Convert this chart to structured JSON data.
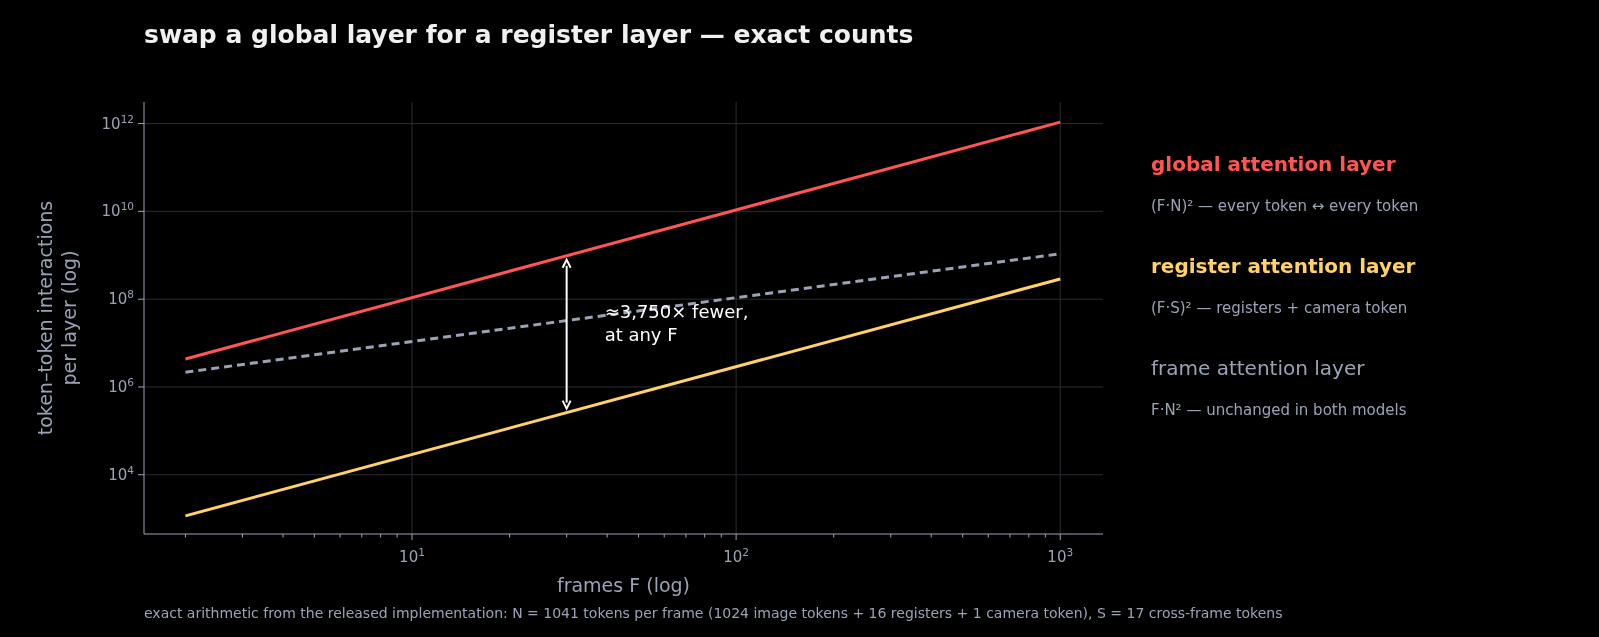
{
  "chart_data": {
    "type": "line",
    "title": "swap a global layer for a register layer — exact counts",
    "xlabel": "frames F  (log)",
    "ylabel": "token–token interactions\nper layer  (log)",
    "log": "xy",
    "grid": true,
    "legend": "right",
    "marker": "none",
    "xlim": [
      1.49,
      1355
    ],
    "ylim": [
      447,
      3100000000000.0
    ],
    "xticks": [
      {
        "value": 2,
        "label": null
      },
      {
        "value": 3,
        "label": null
      },
      {
        "value": 4,
        "label": null
      },
      {
        "value": 5,
        "label": null
      },
      {
        "value": 6,
        "label": null
      },
      {
        "value": 7,
        "label": null
      },
      {
        "value": 8,
        "label": null
      },
      {
        "value": 9,
        "label": null
      },
      {
        "value": 10,
        "label": "10$^{1}$"
      },
      {
        "value": 20,
        "label": null
      },
      {
        "value": 30,
        "label": null
      },
      {
        "value": 40,
        "label": null
      },
      {
        "value": 50,
        "label": null
      },
      {
        "value": 60,
        "label": null
      },
      {
        "value": 70,
        "label": null
      },
      {
        "value": 80,
        "label": null
      },
      {
        "value": 90,
        "label": null
      },
      {
        "value": 100,
        "label": "10$^{2}$"
      },
      {
        "value": 200,
        "label": null
      },
      {
        "value": 300,
        "label": null
      },
      {
        "value": 400,
        "label": null
      },
      {
        "value": 500,
        "label": null
      },
      {
        "value": 600,
        "label": null
      },
      {
        "value": 700,
        "label": null
      },
      {
        "value": 800,
        "label": null
      },
      {
        "value": 900,
        "label": null
      },
      {
        "value": 1000,
        "label": "10$^{3}$"
      }
    ],
    "yticks": [
      {
        "value": 10000.0,
        "label": "10$^{4}$"
      },
      {
        "value": 1000000.0,
        "label": "10$^{6}$"
      },
      {
        "value": 100000000.0,
        "label": "10$^{8}$"
      },
      {
        "value": 10000000000.0,
        "label": "10$^{10}$"
      },
      {
        "value": 1000000000000.0,
        "label": "10$^{12}$"
      }
    ],
    "x": [
      2,
      1000
    ],
    "series": [
      {
        "name": "global attention layer",
        "color": "#ff5555",
        "values": [
          4330000.0,
          1080000000000.0
        ],
        "line_style": "solid"
      },
      {
        "name": "register attention layer",
        "color": "#ffd166",
        "values": [
          1156,
          289000000.0
        ],
        "line_style": "solid"
      },
      {
        "name": "frame attention layer",
        "color": "#9aa3b5",
        "values": [
          2170000.0,
          1080000000.0
        ],
        "line_style": "dashed"
      }
    ],
    "annotations": [
      {
        "text": "≈3,750× fewer,\nat any F",
        "x": 30,
        "y": 30000000.0
      },
      "(F·N)² — every token ↔ every token",
      "(F·S)² — registers + camera token",
      "F·N² — unchanged in both models",
      "exact arithmetic from the released implementation: N = 1041 tokens per frame (1024 image tokens + 16 registers + 1 camera token), S = 17 cross-frame tokens"
    ]
  }
}
